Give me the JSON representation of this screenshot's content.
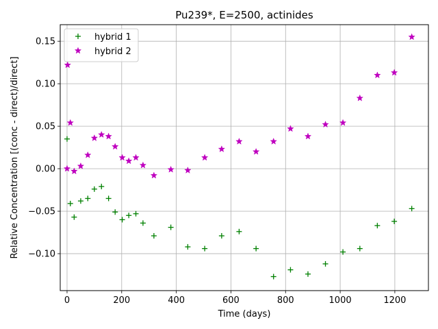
{
  "chart_data": {
    "type": "scatter",
    "title": "Pu239*, E=2500, actinides",
    "xlabel": "Time (days)",
    "ylabel": "Relative Concentration [(conc - direct)/direct]",
    "xlim": [
      -25,
      1323
    ],
    "ylim": [
      -0.1435,
      0.1695
    ],
    "xticks": [
      0,
      200,
      400,
      600,
      800,
      1000,
      1200
    ],
    "xtick_labels": [
      "0",
      "200",
      "400",
      "600",
      "800",
      "1000",
      "1200"
    ],
    "yticks": [
      -0.1,
      -0.05,
      0.0,
      0.05,
      0.1,
      0.15
    ],
    "ytick_labels": [
      "−0.10",
      "−0.05",
      "0.00",
      "0.05",
      "0.10",
      "0.15"
    ],
    "grid": true,
    "legend_position": "top-left",
    "series": [
      {
        "name": "hybrid 1",
        "marker": "plus",
        "color": "#008000",
        "x": [
          0,
          12,
          26,
          50,
          76,
          100,
          126,
          152,
          176,
          202,
          226,
          252,
          278,
          318,
          380,
          442,
          504,
          566,
          630,
          692,
          756,
          818,
          882,
          946,
          1010,
          1072,
          1136,
          1198,
          1262
        ],
        "y": [
          0.035,
          -0.041,
          -0.057,
          -0.038,
          -0.035,
          -0.024,
          -0.021,
          -0.035,
          -0.051,
          -0.06,
          -0.055,
          -0.053,
          -0.064,
          -0.079,
          -0.069,
          -0.092,
          -0.094,
          -0.079,
          -0.074,
          -0.094,
          -0.127,
          -0.119,
          -0.124,
          -0.112,
          -0.098,
          -0.094,
          -0.067,
          -0.062,
          -0.047
        ]
      },
      {
        "name": "hybrid 2",
        "marker": "star",
        "color": "#bf00bf",
        "x": [
          0,
          2,
          12,
          26,
          50,
          76,
          100,
          126,
          152,
          176,
          202,
          226,
          252,
          278,
          318,
          380,
          442,
          504,
          566,
          630,
          692,
          756,
          818,
          882,
          946,
          1010,
          1072,
          1136,
          1198,
          1262
        ],
        "y": [
          0.0,
          0.122,
          0.054,
          -0.003,
          0.003,
          0.016,
          0.036,
          0.04,
          0.038,
          0.026,
          0.013,
          0.009,
          0.013,
          0.004,
          -0.008,
          -0.001,
          -0.002,
          0.013,
          0.023,
          0.032,
          0.02,
          0.032,
          0.047,
          0.038,
          0.052,
          0.054,
          0.083,
          0.11,
          0.113,
          0.155
        ]
      }
    ]
  }
}
